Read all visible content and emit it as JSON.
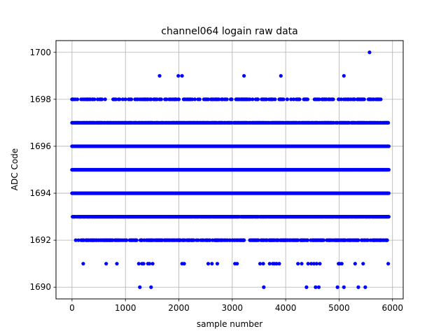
{
  "chart_data": {
    "type": "scatter",
    "title": "channel064 logain raw data",
    "xlabel": "sample number",
    "ylabel": "ADC Code",
    "xlim": [
      -300,
      6200
    ],
    "ylim": [
      1689.5,
      1700.5
    ],
    "xticks": [
      0,
      1000,
      2000,
      3000,
      4000,
      5000,
      6000
    ],
    "yticks": [
      1690,
      1692,
      1694,
      1696,
      1698,
      1700
    ],
    "grid": true,
    "marker_color": "#0000ff",
    "series": [
      {
        "values_summary": "ADC codes per sample, samples 0-5930",
        "levels": [
          {
            "y": 1690,
            "x": [
              1270,
              1480,
              3590,
              4390,
              4560,
              4620,
              4970,
              5090,
              5360,
              5490
            ]
          },
          {
            "y": 1691,
            "x": [
              210,
              640,
              840,
              1250,
              1310,
              1340,
              1420,
              1450,
              1510,
              2060,
              2100,
              2550,
              2620,
              2720,
              3050,
              3090,
              3520,
              3580,
              3700,
              3760,
              3790,
              3830,
              3880,
              4230,
              4300,
              4420,
              4480,
              4530,
              4580,
              4640,
              4990,
              5010,
              5050,
              5300,
              5450,
              5920
            ]
          },
          {
            "y": 1692,
            "x_range": [
              60,
              5900
            ],
            "density": 0.55
          },
          {
            "y": 1693,
            "x_range": [
              0,
              5930
            ],
            "density": 0.95
          },
          {
            "y": 1694,
            "x_range": [
              0,
              5930
            ],
            "density": 1.0
          },
          {
            "y": 1695,
            "x_range": [
              0,
              5930
            ],
            "density": 1.0
          },
          {
            "y": 1696,
            "x_range": [
              0,
              5930
            ],
            "density": 1.0
          },
          {
            "y": 1697,
            "x_range": [
              0,
              5930
            ],
            "density": 0.8
          },
          {
            "y": 1698,
            "x_range": [
              0,
              5800
            ],
            "density": 0.35
          },
          {
            "y": 1699,
            "x": [
              1640,
              1990,
              2060,
              3220,
              3910,
              5090
            ]
          },
          {
            "y": 1700,
            "x": [
              5570
            ]
          }
        ]
      }
    ]
  }
}
